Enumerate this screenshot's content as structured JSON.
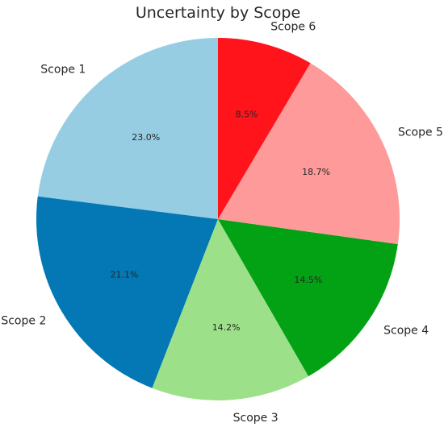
{
  "chart_data": {
    "type": "pie",
    "title": "Uncertainty by Scope",
    "start_angle_deg": 90,
    "direction": "counterclockwise",
    "slices": [
      {
        "label": "Scope 1",
        "value": 23.0,
        "pct_text": "23.0%",
        "color": "#96CDE3"
      },
      {
        "label": "Scope 2",
        "value": 21.1,
        "pct_text": "21.1%",
        "color": "#0378B4"
      },
      {
        "label": "Scope 3",
        "value": 14.2,
        "pct_text": "14.2%",
        "color": "#9DE08A"
      },
      {
        "label": "Scope 4",
        "value": 14.5,
        "pct_text": "14.5%",
        "color": "#03A214"
      },
      {
        "label": "Scope 5",
        "value": 18.7,
        "pct_text": "18.7%",
        "color": "#FF9A9A"
      },
      {
        "label": "Scope 6",
        "value": 8.5,
        "pct_text": "8.5%",
        "color": "#FF141C"
      }
    ],
    "legend": "none"
  }
}
